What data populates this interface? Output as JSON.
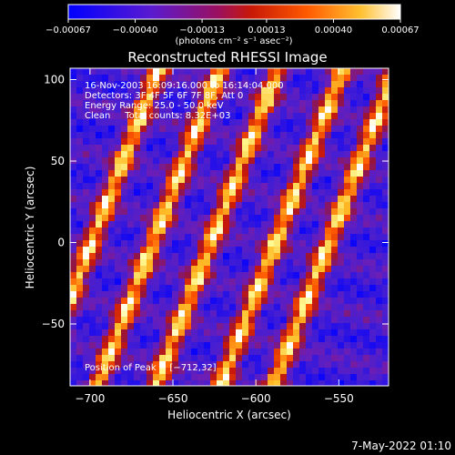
{
  "chart_data": {
    "type": "heatmap",
    "title": "Reconstructed RHESSI Image",
    "xlabel": "Heliocentric X (arcsec)",
    "ylabel": "Heliocentric Y (arcsec)",
    "xlim": [
      -712,
      -520
    ],
    "ylim": [
      -88,
      107
    ],
    "x_ticks": [
      -700,
      -650,
      -600,
      -550
    ],
    "y_ticks": [
      -50,
      0,
      50,
      100
    ],
    "x_tick_labels": [
      "−700",
      "−650",
      "−600",
      "−550"
    ],
    "y_tick_labels": [
      "−50",
      "0",
      "50",
      "100"
    ],
    "colorbar": {
      "range": [
        -0.00067,
        0.00067
      ],
      "ticks": [
        -0.00067,
        -0.0004,
        -0.00013,
        0.00013,
        0.0004,
        0.00067
      ],
      "tick_labels": [
        "−0.00067",
        "−0.00040",
        "−0.00013",
        "0.00013",
        "0.00040",
        "0.00067"
      ],
      "unit_label": "(photons cm⁻² s⁻¹ asec⁻²)"
    },
    "annotations": [
      "16-Nov-2003 16:09:16.000 to 16:14:04.000",
      "Detectors: 3F 4F 5F 6F 7F 8F, Att 0",
      "Energy Range: 25.0 - 50.0 keV",
      "Clean     Total counts: 8.32E+03"
    ],
    "peak_label": "Position of Peak = [−712,32]",
    "peak_position": [
      -712,
      32
    ],
    "stripes": {
      "orientation": "diagonal",
      "bright_ridges_x_at_y0": [
        -699,
        -662,
        -627,
        -588,
        -556
      ]
    },
    "grid": false,
    "legend": "colorbar-top"
  },
  "footer": {
    "timestamp": "7-May-2022 01:10"
  },
  "colors": {
    "background": "#000000",
    "text": "#ffffff",
    "colormap": [
      "#0000ff",
      "#6a1fc8",
      "#a81414",
      "#ff4000",
      "#ffa000",
      "#ffff90",
      "#ffffff"
    ]
  }
}
